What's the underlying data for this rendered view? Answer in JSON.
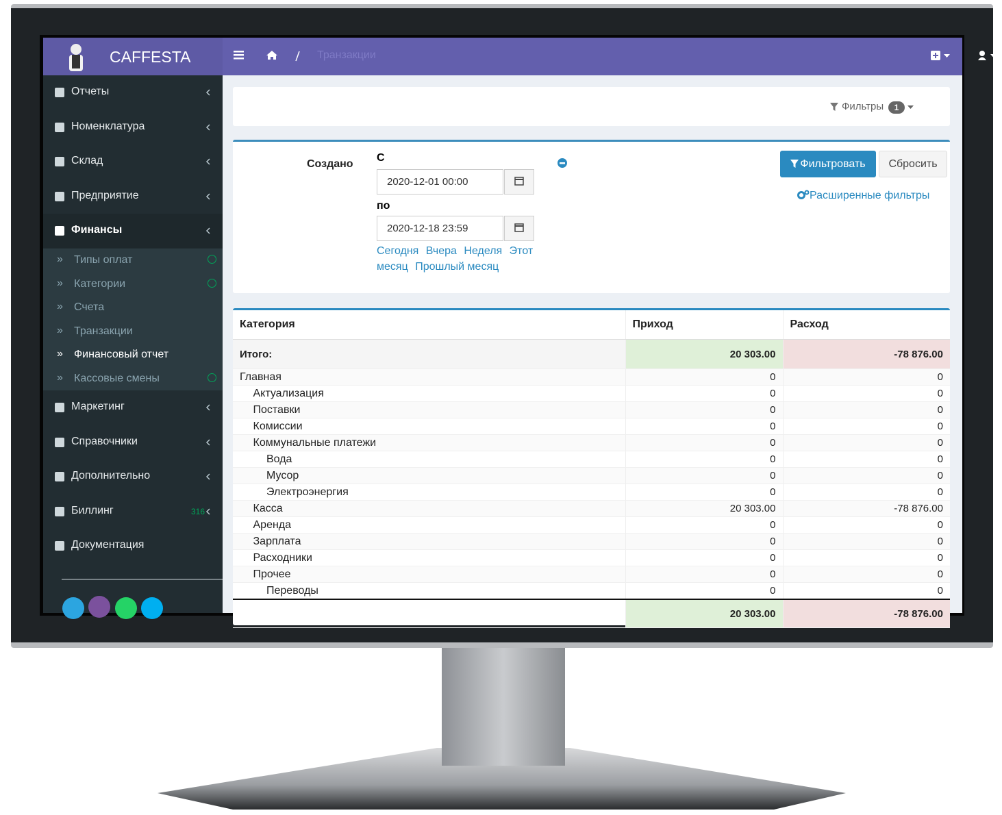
{
  "brand": "CAFFESTA",
  "breadcrumb": "Транзакции",
  "sidebar": {
    "items_top": [
      {
        "label": "Отчеты"
      },
      {
        "label": "Номенклатура"
      },
      {
        "label": "Склад"
      },
      {
        "label": "Предприятие"
      },
      {
        "label": "Финансы"
      }
    ],
    "submenu": [
      "Типы оплат",
      "Категории",
      "Счета",
      "Транзакции",
      "Финансовый отчет",
      "Кассовые смены"
    ],
    "items_bottom": [
      {
        "label": "Маркетинг"
      },
      {
        "label": "Справочники"
      },
      {
        "label": "Дополнительно"
      },
      {
        "label": "Биллинг",
        "badge": "316"
      },
      {
        "label": "Документация"
      }
    ]
  },
  "filters_bar": {
    "label": "Фильтры",
    "badge": "1"
  },
  "filter": {
    "field": "Создано",
    "from_label": "С",
    "from": "2020-12-01 00:00",
    "to_label": "по",
    "to": "2020-12-18 23:59",
    "presets": [
      "Сегодня",
      "Вчера",
      "Неделя",
      "Этот месяц",
      "Прошлый месяц"
    ],
    "apply": "Фильтровать",
    "reset": "Сбросить",
    "advanced": "Расширенные фильтры"
  },
  "table": {
    "headers": [
      "Категория",
      "Приход",
      "Расход"
    ],
    "total": {
      "label": "Итого:",
      "income": "20 303.00",
      "expense": "-78 876.00"
    },
    "rows": [
      {
        "label": "Главная",
        "income": "0",
        "expense": "0",
        "children": [
          {
            "label": "Актуализация",
            "income": "0",
            "expense": "0"
          },
          {
            "label": "Поставки",
            "income": "0",
            "expense": "0"
          },
          {
            "label": "Комиссии",
            "income": "0",
            "expense": "0"
          },
          {
            "label": "Коммунальные платежи",
            "income": "0",
            "expense": "0",
            "children": [
              {
                "label": "Вода",
                "income": "0",
                "expense": "0"
              },
              {
                "label": "Мусор",
                "income": "0",
                "expense": "0"
              },
              {
                "label": "Электроэнергия",
                "income": "0",
                "expense": "0"
              }
            ]
          },
          {
            "label": "Касса",
            "income": "20 303.00",
            "expense": "-78 876.00"
          },
          {
            "label": "Аренда",
            "income": "0",
            "expense": "0"
          },
          {
            "label": "Зарплата",
            "income": "0",
            "expense": "0"
          },
          {
            "label": "Расходники",
            "income": "0",
            "expense": "0"
          },
          {
            "label": "Прочее",
            "income": "0",
            "expense": "0",
            "children": [
              {
                "label": "Переводы",
                "income": "0",
                "expense": "0"
              }
            ]
          }
        ]
      }
    ],
    "footer": {
      "income": "20 303.00",
      "expense": "-78 876.00"
    }
  }
}
